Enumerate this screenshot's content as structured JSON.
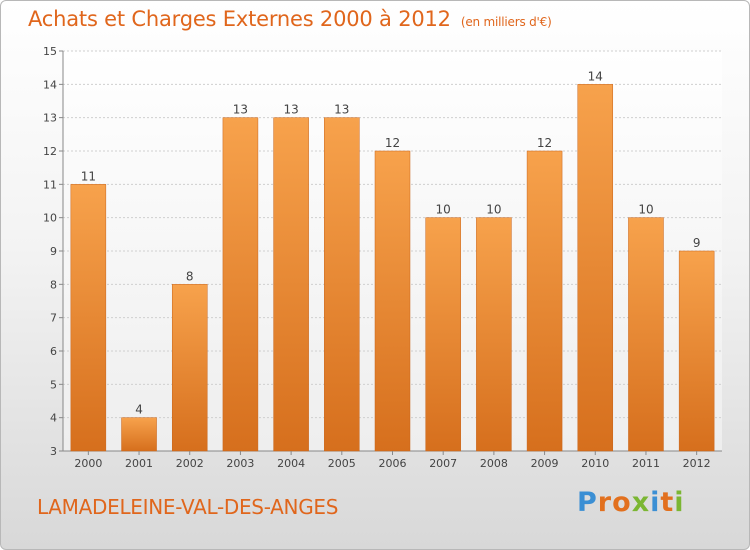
{
  "header": {
    "title": "Achats et Charges Externes 2000 à 2012",
    "subtitle": "(en milliers d'€)"
  },
  "footer": {
    "commune": "LAMADELEINE-VAL-DES-ANGES",
    "logo_text": "Proxiti",
    "logo_colors": [
      "#3b8fd4",
      "#e2701e",
      "#e2701e",
      "#7bb632",
      "#3b8fd4",
      "#e2701e",
      "#7bb632"
    ]
  },
  "colors": {
    "bar_top": "#f7a24c",
    "bar_bottom": "#d66f1d",
    "title": "#e0661c",
    "grid": "#cfcfcf"
  },
  "chart_data": {
    "type": "bar",
    "categories": [
      "2000",
      "2001",
      "2002",
      "2003",
      "2004",
      "2005",
      "2006",
      "2007",
      "2008",
      "2009",
      "2010",
      "2011",
      "2012"
    ],
    "values": [
      11,
      4,
      8,
      13,
      13,
      13,
      12,
      10,
      10,
      12,
      14,
      10,
      9
    ],
    "data_labels": [
      "11",
      "4",
      "8",
      "13",
      "13",
      "13",
      "12",
      "10",
      "10",
      "12",
      "14",
      "10",
      "9"
    ],
    "ylim": [
      3,
      15
    ],
    "yticks": [
      3,
      4,
      5,
      6,
      7,
      8,
      9,
      10,
      11,
      12,
      13,
      14,
      15
    ],
    "grid": true,
    "title": "Achats et Charges Externes 2000 à 2012",
    "xlabel": "",
    "ylabel": ""
  }
}
